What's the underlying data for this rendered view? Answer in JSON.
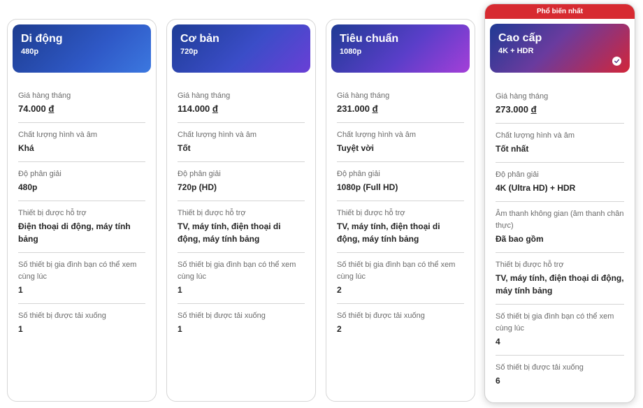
{
  "ribbon": "Phổ biến nhất",
  "plans": [
    {
      "name": "Di động",
      "resolution_tag": "480p",
      "price_label": "Giá hàng tháng",
      "price": "74.000",
      "currency": "đ",
      "quality_label": "Chất lượng hình và âm",
      "quality": "Khá",
      "resolution_label": "Độ phân giải",
      "resolution": "480p",
      "devices_label": "Thiết bị được hỗ trợ",
      "devices": "Điện thoại di động, máy tính bảng",
      "simul_label": "Số thiết bị gia đình bạn có thể xem cùng lúc",
      "simul": "1",
      "download_label": "Số thiết bị được tải xuống",
      "download": "1"
    },
    {
      "name": "Cơ bản",
      "resolution_tag": "720p",
      "price_label": "Giá hàng tháng",
      "price": "114.000",
      "currency": "đ",
      "quality_label": "Chất lượng hình và âm",
      "quality": "Tốt",
      "resolution_label": "Độ phân giải",
      "resolution": "720p (HD)",
      "devices_label": "Thiết bị được hỗ trợ",
      "devices": "TV, máy tính, điện thoại di động, máy tính bảng",
      "simul_label": "Số thiết bị gia đình bạn có thể xem cùng lúc",
      "simul": "1",
      "download_label": "Số thiết bị được tải xuống",
      "download": "1"
    },
    {
      "name": "Tiêu chuẩn",
      "resolution_tag": "1080p",
      "price_label": "Giá hàng tháng",
      "price": "231.000",
      "currency": "đ",
      "quality_label": "Chất lượng hình và âm",
      "quality": "Tuyệt vời",
      "resolution_label": "Độ phân giải",
      "resolution": "1080p (Full HD)",
      "devices_label": "Thiết bị được hỗ trợ",
      "devices": "TV, máy tính, điện thoại di động, máy tính bảng",
      "simul_label": "Số thiết bị gia đình bạn có thể xem cùng lúc",
      "simul": "2",
      "download_label": "Số thiết bị được tải xuống",
      "download": "2"
    },
    {
      "name": "Cao cấp",
      "resolution_tag": "4K + HDR",
      "selected": true,
      "price_label": "Giá hàng tháng",
      "price": "273.000",
      "currency": "đ",
      "quality_label": "Chất lượng hình và âm",
      "quality": "Tốt nhất",
      "resolution_label": "Độ phân giải",
      "resolution": "4K (Ultra HD) + HDR",
      "spatial_label": "Âm thanh không gian (âm thanh chân thực)",
      "spatial": "Đã bao gồm",
      "devices_label": "Thiết bị được hỗ trợ",
      "devices": "TV, máy tính, điện thoại di động, máy tính bảng",
      "simul_label": "Số thiết bị gia đình bạn có thể xem cùng lúc",
      "simul": "4",
      "download_label": "Số thiết bị được tải xuống",
      "download": "6"
    }
  ],
  "colors": {
    "ribbon": "#d72a31",
    "divider": "#d4d4d4"
  },
  "icons": {
    "selected": "check-circle-icon"
  }
}
